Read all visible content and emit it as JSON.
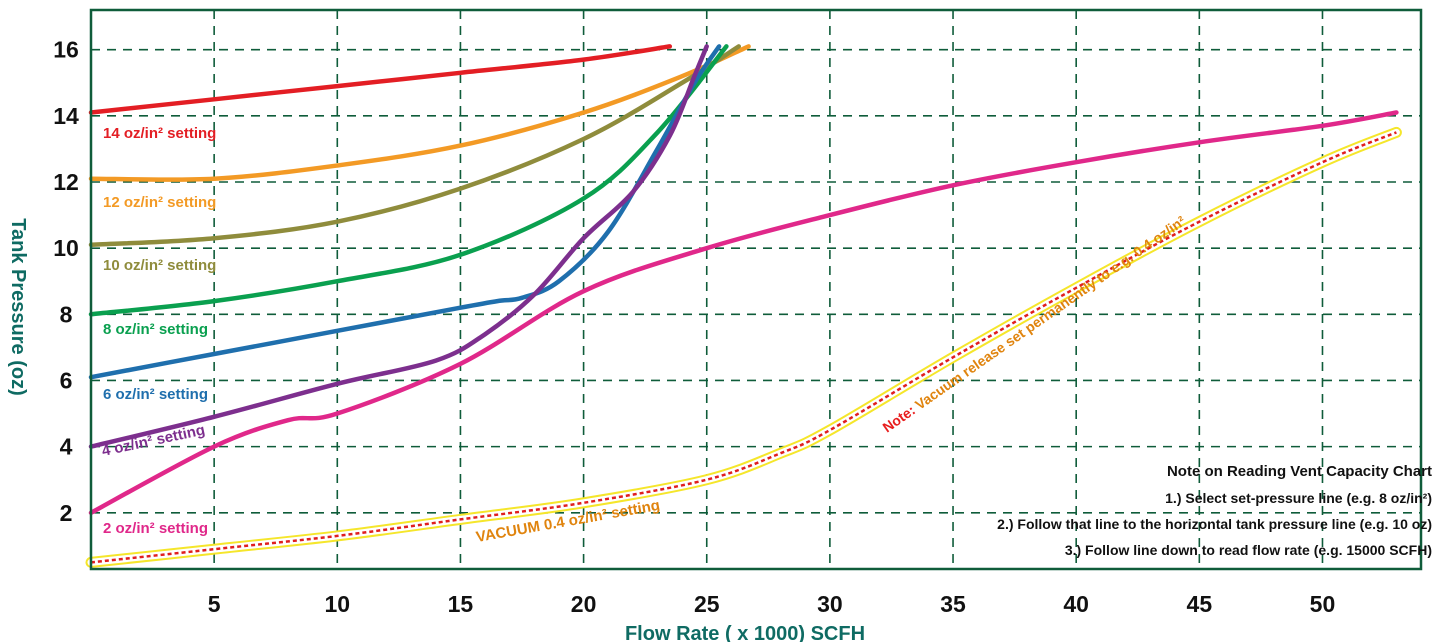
{
  "chart_data": {
    "type": "line",
    "xlabel": "Flow Rate ( x 1000) SCFH",
    "ylabel": "Tank Pressure (oz)",
    "xlim": [
      0,
      54
    ],
    "ylim": [
      0.3,
      17.2
    ],
    "xticks": [
      5,
      10,
      15,
      20,
      25,
      30,
      35,
      40,
      45,
      50
    ],
    "yticks": [
      2,
      4,
      6,
      8,
      10,
      12,
      14,
      16
    ],
    "grid": true,
    "grid_style": "dashed",
    "colors": {
      "frame": "#0f5c3a",
      "grid": "#0f5c3a",
      "axis_title": "#0f6b63"
    },
    "series": [
      {
        "name": "14 oz/in² setting",
        "color": "#e31e24",
        "x": [
          0,
          5,
          10,
          15,
          20,
          23.5
        ],
        "y": [
          14.1,
          14.5,
          14.9,
          15.3,
          15.7,
          16.1
        ]
      },
      {
        "name": "12 oz/in² setting",
        "color": "#f39a25",
        "x": [
          0,
          5,
          10,
          15,
          20,
          24,
          26.7
        ],
        "y": [
          12.1,
          12.1,
          12.5,
          13.1,
          14.1,
          15.2,
          16.1
        ]
      },
      {
        "name": "10 oz/in² setting",
        "color": "#8f8c3c",
        "x": [
          0,
          5,
          10,
          15,
          20,
          24,
          26.3
        ],
        "y": [
          10.1,
          10.3,
          10.8,
          11.8,
          13.3,
          15.0,
          16.1
        ]
      },
      {
        "name": "8 oz/in² setting",
        "color": "#0aa04f",
        "x": [
          0,
          5,
          10,
          15,
          20,
          23,
          25.8
        ],
        "y": [
          8.0,
          8.4,
          9.0,
          9.8,
          11.5,
          13.5,
          16.1
        ]
      },
      {
        "name": "6 oz/in² setting",
        "color": "#1f6fad",
        "x": [
          0,
          5,
          10,
          15,
          16.5,
          17.5,
          19,
          21,
          23,
          24.5,
          25.5
        ],
        "y": [
          6.1,
          6.8,
          7.5,
          8.2,
          8.4,
          8.5,
          9.0,
          10.5,
          13.0,
          15.0,
          16.1
        ]
      },
      {
        "name": "4 oz/in² setting",
        "color": "#7d2f8e",
        "x": [
          0,
          5,
          10,
          14,
          16,
          18,
          20,
          22,
          23.5,
          24.5,
          25
        ],
        "y": [
          4.0,
          4.9,
          5.9,
          6.6,
          7.4,
          8.6,
          10.3,
          11.7,
          13.4,
          15.2,
          16.1
        ]
      },
      {
        "name": "2 oz/in² setting",
        "color": "#e0288a",
        "x": [
          0,
          5,
          8,
          10,
          15,
          20,
          25,
          30,
          35,
          40,
          45,
          50,
          53
        ],
        "y": [
          2.0,
          4.0,
          4.8,
          5.0,
          6.5,
          8.7,
          10.0,
          11.0,
          11.9,
          12.6,
          13.2,
          13.7,
          14.1
        ]
      },
      {
        "name": "VACUUM 0.4 oz/in² setting",
        "color": "#e01e1e",
        "highlight": "#f5e62b",
        "x": [
          0,
          5,
          10,
          15,
          20,
          25,
          28,
          30,
          35,
          40,
          45,
          50,
          53
        ],
        "y": [
          0.5,
          0.9,
          1.3,
          1.8,
          2.3,
          3.0,
          3.8,
          4.5,
          6.7,
          8.8,
          10.8,
          12.6,
          13.5
        ]
      }
    ],
    "annotation": {
      "prefix": "Note:",
      "text": " Vacuum release set permanently to e.g. 0.4 oz/in²"
    },
    "note_box": {
      "title": "Note on Reading Vent Capacity Chart",
      "lines": [
        "1.) Select set-pressure line (e.g. 8 oz/in²)",
        "2.) Follow that line to the horizontal tank pressure line (e.g. 10 oz)",
        "3.) Follow line down to read flow rate (e.g.  15000 SCFH)"
      ]
    }
  }
}
